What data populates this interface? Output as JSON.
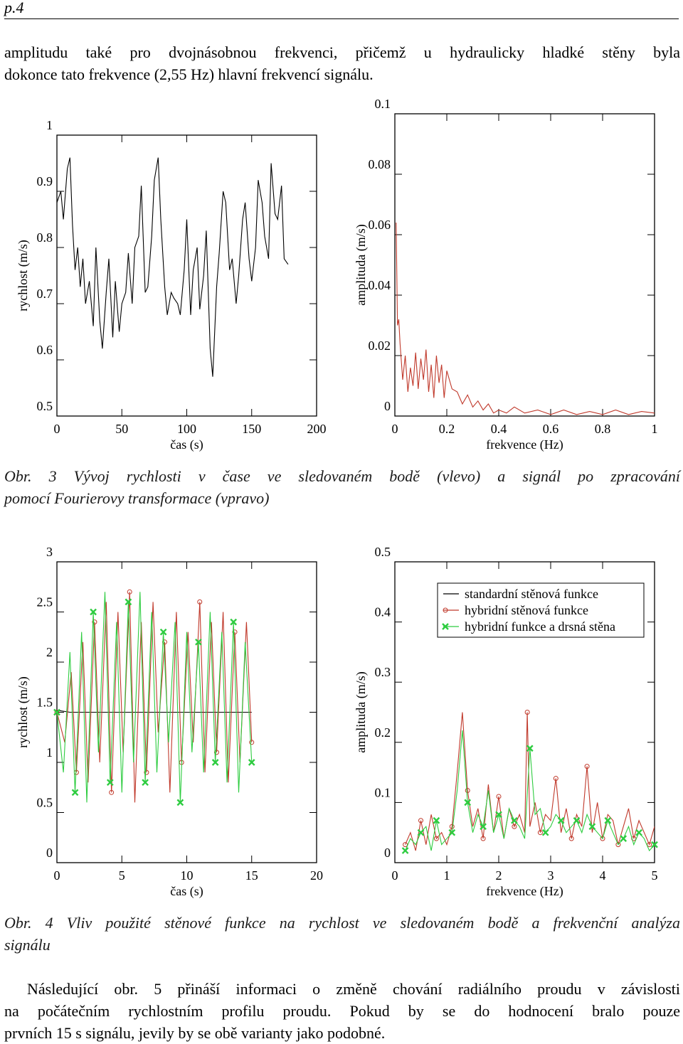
{
  "page": {
    "number": "p.4"
  },
  "paragraph1": {
    "line1": "amplitudu také pro dvojnásobnou frekvenci, přičemž u hydraulicky hladké stěny byla",
    "line2": "dokonce tato frekvence (2,55 Hz) hlavní frekvencí signálu."
  },
  "figure3": {
    "caption_line1": "Obr. 3 Vývoj rychlosti v čase ve sledovaném bodě (vlevo) a signál po zpracování",
    "caption_line2": "pomocí Fourierovy transformace (vpravo)"
  },
  "figure4": {
    "caption_line1": "Obr. 4 Vliv použité stěnové funkce na rychlost ve sledovaném bodě a frekvenční analýza",
    "caption_line2": "signálu"
  },
  "paragraph2": {
    "line1": "Následující obr. 5 přináší informaci o změně chování radiálního proudu v závislosti",
    "line2": "na počátečním rychlostním profilu proudu. Pokud by se do hodnocení bralo pouze",
    "line3": "prvních 15 s signálu, jevily by se obě varianty jako podobné."
  },
  "chart_data": [
    {
      "type": "line",
      "xlabel": "čas (s)",
      "ylabel": "rychlost (m/s)",
      "xlim": [
        0,
        200
      ],
      "ylim": [
        0.5,
        1
      ],
      "xticks": [
        "0",
        "50",
        "100",
        "150",
        "200"
      ],
      "yticks": [
        "0.5",
        "0.6",
        "0.7",
        "0.8",
        "0.9",
        "1"
      ],
      "series": [
        {
          "color": "#000000",
          "x": [
            0,
            3,
            5,
            8,
            10,
            12,
            14,
            16,
            18,
            20,
            22,
            25,
            28,
            30,
            33,
            35,
            38,
            40,
            43,
            45,
            48,
            50,
            53,
            55,
            58,
            60,
            63,
            65,
            68,
            70,
            73,
            75,
            78,
            80,
            83,
            85,
            88,
            90,
            93,
            95,
            98,
            100,
            103,
            105,
            108,
            110,
            113,
            115,
            118,
            120,
            123,
            125,
            128,
            130,
            133,
            135,
            138,
            140,
            143,
            145,
            148,
            150,
            153,
            155,
            158,
            160,
            163,
            165,
            168,
            170,
            173,
            175,
            178
          ],
          "y": [
            0.88,
            0.9,
            0.85,
            0.94,
            0.96,
            0.84,
            0.76,
            0.8,
            0.73,
            0.78,
            0.7,
            0.74,
            0.66,
            0.8,
            0.67,
            0.62,
            0.72,
            0.78,
            0.64,
            0.74,
            0.65,
            0.7,
            0.72,
            0.79,
            0.7,
            0.8,
            0.82,
            0.91,
            0.72,
            0.73,
            0.82,
            0.92,
            0.96,
            0.85,
            0.73,
            0.68,
            0.72,
            0.71,
            0.7,
            0.68,
            0.76,
            0.85,
            0.68,
            0.76,
            0.8,
            0.69,
            0.75,
            0.83,
            0.62,
            0.57,
            0.73,
            0.79,
            0.9,
            0.88,
            0.76,
            0.78,
            0.7,
            0.75,
            0.85,
            0.88,
            0.78,
            0.74,
            0.8,
            0.92,
            0.88,
            0.82,
            0.78,
            0.95,
            0.86,
            0.85,
            0.91,
            0.78,
            0.77
          ]
        }
      ]
    },
    {
      "type": "line",
      "xlabel": "frekvence (Hz)",
      "ylabel": "amplituda (m/s)",
      "xlim": [
        0,
        1
      ],
      "ylim": [
        0,
        0.1
      ],
      "xticks": [
        "0",
        "0.2",
        "0.4",
        "0.6",
        "0.8",
        "1"
      ],
      "yticks": [
        "0",
        "0.02",
        "0.04",
        "0.06",
        "0.08",
        "0.1"
      ],
      "series": [
        {
          "color": "#c0392b",
          "x": [
            0.005,
            0.01,
            0.015,
            0.02,
            0.03,
            0.04,
            0.05,
            0.06,
            0.07,
            0.08,
            0.09,
            0.1,
            0.11,
            0.12,
            0.13,
            0.14,
            0.15,
            0.16,
            0.17,
            0.18,
            0.19,
            0.2,
            0.22,
            0.24,
            0.26,
            0.28,
            0.3,
            0.32,
            0.34,
            0.36,
            0.38,
            0.4,
            0.43,
            0.46,
            0.5,
            0.55,
            0.6,
            0.65,
            0.7,
            0.75,
            0.8,
            0.85,
            0.9,
            0.95,
            1.0
          ],
          "y": [
            0.064,
            0.03,
            0.032,
            0.024,
            0.012,
            0.02,
            0.008,
            0.016,
            0.01,
            0.021,
            0.009,
            0.019,
            0.012,
            0.022,
            0.008,
            0.017,
            0.006,
            0.02,
            0.011,
            0.017,
            0.006,
            0.015,
            0.009,
            0.008,
            0.004,
            0.007,
            0.003,
            0.005,
            0.002,
            0.004,
            0.001,
            0.002,
            0.001,
            0.003,
            0.001,
            0.002,
            0.0005,
            0.002,
            0.0005,
            0.0015,
            0.0005,
            0.002,
            0.0005,
            0.0015,
            0.001
          ]
        }
      ]
    },
    {
      "type": "line",
      "xlabel": "čas (s)",
      "ylabel": "rychlost (m/s)",
      "xlim": [
        0,
        20
      ],
      "ylim": [
        0,
        3
      ],
      "xticks": [
        "0",
        "5",
        "10",
        "15",
        "20"
      ],
      "yticks": [
        "0",
        "0.5",
        "1",
        "1.5",
        "2",
        "2.5",
        "3"
      ],
      "series": [
        {
          "name": "standardní stěnová funkce",
          "color": "#000000",
          "x": [
            0,
            1,
            2,
            3,
            4,
            5,
            6,
            7,
            8,
            9,
            10,
            11,
            12,
            13,
            14,
            15
          ],
          "y": [
            1.52,
            1.5,
            1.5,
            1.5,
            1.5,
            1.5,
            1.5,
            1.5,
            1.5,
            1.5,
            1.5,
            1.5,
            1.5,
            1.5,
            1.5,
            1.5
          ]
        },
        {
          "name": "hybridní stěnová funkce",
          "color": "#c0392b",
          "marker": "circle",
          "x": [
            0,
            0.6,
            1.1,
            1.5,
            2.0,
            2.4,
            2.9,
            3.3,
            3.8,
            4.2,
            4.7,
            5.1,
            5.6,
            6.0,
            6.5,
            6.9,
            7.4,
            7.8,
            8.3,
            8.7,
            9.2,
            9.6,
            10.1,
            10.5,
            11.0,
            11.4,
            11.9,
            12.3,
            12.8,
            13.2,
            13.7,
            14.1,
            14.6,
            15.0
          ],
          "y": [
            1.5,
            1.2,
            1.9,
            0.9,
            2.2,
            0.8,
            2.4,
            1.0,
            2.6,
            0.7,
            2.5,
            1.1,
            2.7,
            0.6,
            2.4,
            0.9,
            2.6,
            1.3,
            2.2,
            0.7,
            2.5,
            1.0,
            2.3,
            1.2,
            2.6,
            0.9,
            2.4,
            1.1,
            2.5,
            0.8,
            2.3,
            1.0,
            2.4,
            1.2
          ]
        },
        {
          "name": "hybridní funkce a drsná stěna",
          "color": "#2ecc40",
          "marker": "x",
          "x": [
            0,
            0.5,
            1.0,
            1.4,
            1.9,
            2.3,
            2.8,
            3.2,
            3.7,
            4.1,
            4.6,
            5.0,
            5.5,
            5.9,
            6.4,
            6.8,
            7.3,
            7.7,
            8.2,
            8.6,
            9.1,
            9.5,
            10.0,
            10.4,
            10.9,
            11.3,
            11.8,
            12.2,
            12.7,
            13.1,
            13.6,
            14.0,
            14.5,
            15.0
          ],
          "y": [
            1.5,
            0.9,
            2.1,
            0.7,
            2.3,
            0.6,
            2.5,
            1.1,
            2.7,
            0.8,
            2.4,
            0.7,
            2.6,
            1.0,
            2.7,
            0.8,
            2.5,
            0.9,
            2.3,
            1.2,
            2.4,
            0.6,
            2.3,
            1.1,
            2.2,
            0.9,
            2.5,
            1.0,
            2.3,
            0.8,
            2.4,
            0.7,
            2.2,
            1.0
          ]
        }
      ]
    },
    {
      "type": "line",
      "xlabel": "frekvence (Hz)",
      "ylabel": "amplituda (m/s)",
      "xlim": [
        0,
        5
      ],
      "ylim": [
        0,
        0.5
      ],
      "xticks": [
        "0",
        "1",
        "2",
        "3",
        "4",
        "5"
      ],
      "yticks": [
        "0",
        "0.1",
        "0.2",
        "0.3",
        "0.4",
        "0.5"
      ],
      "legend": {
        "position": "top-right",
        "entries": [
          "standardní stěnová funkce",
          "hybridní stěnová funkce",
          "hybridní funkce a drsná stěna"
        ]
      },
      "series": [
        {
          "name": "hybridní stěnová funkce",
          "color": "#c0392b",
          "marker": "circle",
          "x": [
            0.2,
            0.3,
            0.4,
            0.5,
            0.6,
            0.7,
            0.8,
            0.9,
            1.0,
            1.1,
            1.2,
            1.3,
            1.4,
            1.5,
            1.6,
            1.7,
            1.8,
            1.9,
            2.0,
            2.1,
            2.2,
            2.3,
            2.4,
            2.5,
            2.55,
            2.6,
            2.7,
            2.8,
            2.9,
            3.0,
            3.1,
            3.2,
            3.3,
            3.4,
            3.5,
            3.6,
            3.7,
            3.8,
            3.9,
            4.0,
            4.1,
            4.2,
            4.3,
            4.4,
            4.5,
            4.6,
            4.7,
            4.8,
            4.9,
            5.0
          ],
          "y": [
            0.03,
            0.05,
            0.02,
            0.07,
            0.03,
            0.08,
            0.04,
            0.05,
            0.03,
            0.06,
            0.15,
            0.25,
            0.12,
            0.06,
            0.09,
            0.04,
            0.13,
            0.05,
            0.11,
            0.04,
            0.09,
            0.06,
            0.08,
            0.05,
            0.25,
            0.06,
            0.1,
            0.05,
            0.08,
            0.07,
            0.14,
            0.05,
            0.09,
            0.04,
            0.08,
            0.06,
            0.16,
            0.05,
            0.1,
            0.04,
            0.08,
            0.07,
            0.03,
            0.06,
            0.09,
            0.04,
            0.07,
            0.05,
            0.03,
            0.06
          ]
        },
        {
          "name": "hybridní funkce a drsná stěna",
          "color": "#2ecc40",
          "marker": "x",
          "x": [
            0.2,
            0.3,
            0.4,
            0.5,
            0.6,
            0.7,
            0.8,
            0.9,
            1.0,
            1.1,
            1.2,
            1.3,
            1.4,
            1.5,
            1.6,
            1.7,
            1.8,
            1.9,
            2.0,
            2.1,
            2.2,
            2.3,
            2.4,
            2.5,
            2.6,
            2.7,
            2.8,
            2.9,
            3.0,
            3.1,
            3.2,
            3.3,
            3.4,
            3.5,
            3.6,
            3.7,
            3.8,
            3.9,
            4.0,
            4.1,
            4.2,
            4.3,
            4.4,
            4.5,
            4.6,
            4.7,
            4.8,
            4.9,
            5.0
          ],
          "y": [
            0.02,
            0.04,
            0.03,
            0.05,
            0.06,
            0.02,
            0.07,
            0.03,
            0.04,
            0.05,
            0.12,
            0.22,
            0.1,
            0.05,
            0.08,
            0.06,
            0.12,
            0.05,
            0.08,
            0.04,
            0.09,
            0.07,
            0.06,
            0.04,
            0.19,
            0.08,
            0.09,
            0.05,
            0.06,
            0.08,
            0.07,
            0.05,
            0.06,
            0.07,
            0.05,
            0.08,
            0.06,
            0.05,
            0.04,
            0.07,
            0.05,
            0.03,
            0.04,
            0.06,
            0.03,
            0.05,
            0.04,
            0.02,
            0.03
          ]
        }
      ]
    }
  ]
}
